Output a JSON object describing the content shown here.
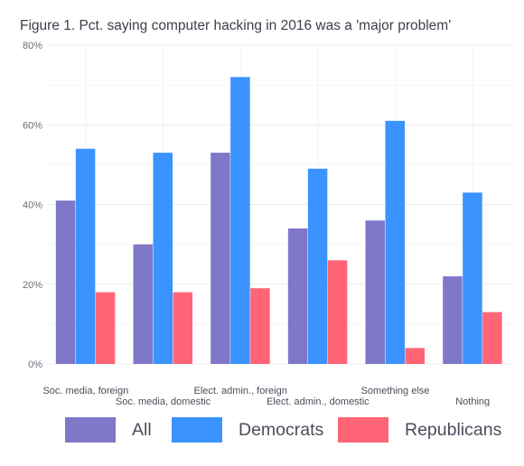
{
  "chart_data": {
    "type": "bar",
    "title": "Figure 1. Pct. saying computer hacking in 2016 was a 'major problem'",
    "categories": [
      "Soc. media, foreign",
      "Soc. media, domestic",
      "Elect. admin., foreign",
      "Elect. admin., domestic",
      "Something else",
      "Nothing"
    ],
    "series": [
      {
        "name": "All",
        "color": "#7f78c8",
        "values": [
          41,
          30,
          53,
          34,
          36,
          22
        ]
      },
      {
        "name": "Democrats",
        "color": "#3a93ff",
        "values": [
          54,
          53,
          72,
          49,
          61,
          43
        ]
      },
      {
        "name": "Republicans",
        "color": "#ff6577",
        "values": [
          18,
          18,
          19,
          26,
          4,
          13
        ]
      }
    ],
    "yticks": [
      "0%",
      "20%",
      "40%",
      "60%",
      "80%"
    ],
    "ylim": [
      0,
      80
    ],
    "xlabel": "",
    "ylabel": "",
    "grid": true,
    "legend_position": "bottom"
  }
}
